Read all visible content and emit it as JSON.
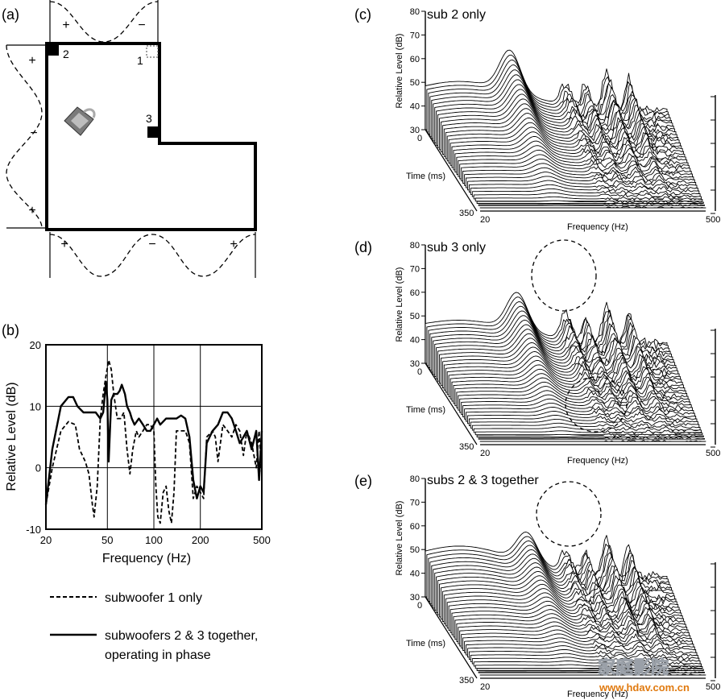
{
  "panels": {
    "a": {
      "letter": "(a)",
      "source_labels": [
        "1",
        "2",
        "3"
      ],
      "signs_top": [
        "+",
        "−"
      ],
      "signs_left": [
        "+",
        "−",
        "+"
      ],
      "signs_bottom": [
        "+",
        "−",
        "+"
      ]
    },
    "b": {
      "letter": "(b)",
      "legend": {
        "dashed": "subwoofer 1 only",
        "solid_line1": "subwoofers 2 & 3 together,",
        "solid_line2": "operating in phase"
      }
    },
    "c": {
      "letter": "(c)",
      "title": "sub 2 only"
    },
    "d": {
      "letter": "(d)",
      "title": "sub 3 only"
    },
    "e": {
      "letter": "(e)",
      "title": "subs 2 & 3 together"
    }
  },
  "waterfall_axes": {
    "ylabel": "Relative Level (dB)",
    "xlabel": "Frequency (Hz)",
    "zlabel": "Time (ms)",
    "yticks": [
      "80",
      "70",
      "60",
      "50",
      "40",
      "30"
    ],
    "x_start": "20",
    "x_end": "500",
    "z_start": "0",
    "z_end": "350"
  },
  "watermark": {
    "text": "www.hdav.com.cn",
    "logo": "家庭影院"
  },
  "chart_data": [
    {
      "type": "line",
      "panel": "b",
      "xlabel": "Frequency (Hz)",
      "ylabel": "Relative Level (dB)",
      "xscale": "log",
      "xlim": [
        20,
        500
      ],
      "ylim": [
        -10,
        20
      ],
      "xticks": [
        20,
        50,
        100,
        200,
        500
      ],
      "yticks": [
        -10,
        0,
        10,
        20
      ],
      "grid": true,
      "legend_position": "below",
      "series": [
        {
          "name": "subwoofer 1 only",
          "style": "dashed",
          "color": "#000000",
          "x": [
            20,
            22,
            25,
            28,
            31,
            33,
            36,
            38,
            40,
            41,
            43,
            45,
            47,
            49,
            51,
            53,
            55,
            58,
            61,
            64,
            67,
            70,
            73,
            77,
            80,
            85,
            90,
            95,
            100,
            103,
            106,
            110,
            115,
            120,
            125,
            130,
            135,
            140,
            150,
            160,
            170,
            180,
            190,
            200,
            210,
            220,
            240,
            250,
            260,
            280,
            300,
            320,
            340,
            360,
            380,
            400,
            430,
            460,
            480,
            500
          ],
          "y": [
            -6,
            0,
            6,
            7.5,
            7,
            3,
            1,
            -1,
            -6,
            -8,
            -3,
            8,
            12,
            15,
            17.5,
            16,
            12,
            8,
            8,
            9,
            3,
            -1,
            3,
            6,
            5,
            6,
            7,
            7,
            6,
            -3,
            -8,
            -9,
            -4,
            -3,
            -7,
            -9,
            -4,
            6,
            6,
            6,
            4,
            -5,
            -3,
            -4,
            -5,
            5,
            6,
            5,
            1,
            7,
            6,
            5,
            7,
            6,
            2,
            6,
            4,
            0,
            6,
            -1
          ]
        },
        {
          "name": "subwoofers 2 & 3 together, operating in phase",
          "style": "solid",
          "color": "#000000",
          "x": [
            20,
            22,
            25,
            28,
            30,
            32,
            35,
            38,
            42,
            45,
            47,
            49,
            50,
            51,
            53,
            55,
            58,
            60,
            62,
            65,
            67,
            70,
            72,
            75,
            80,
            85,
            90,
            95,
            100,
            105,
            110,
            120,
            130,
            140,
            150,
            160,
            170,
            180,
            190,
            200,
            210,
            220,
            240,
            260,
            280,
            300,
            320,
            340,
            360,
            380,
            400,
            430,
            460,
            480,
            500
          ],
          "y": [
            -6,
            3,
            10,
            11.5,
            11.5,
            10,
            9,
            9,
            9,
            8,
            9,
            14,
            11,
            1,
            11,
            12,
            12,
            12.5,
            13.5,
            12,
            10,
            9,
            8,
            7,
            8,
            7,
            6,
            6,
            7,
            8,
            7,
            8,
            8,
            8,
            8.5,
            8,
            5,
            -2,
            -5,
            -3,
            -4,
            4,
            6,
            7,
            9,
            9,
            8,
            6,
            4,
            5,
            6,
            3,
            6,
            -2,
            6
          ]
        }
      ]
    },
    {
      "type": "waterfall",
      "panel": "c",
      "title": "sub 2 only",
      "xlabel": "Frequency (Hz)",
      "ylabel": "Relative Level (dB)",
      "zlabel": "Time (ms)",
      "xlim": [
        20,
        500
      ],
      "ylim": [
        30,
        80
      ],
      "zlim": [
        0,
        350
      ]
    },
    {
      "type": "waterfall",
      "panel": "d",
      "title": "sub 3 only",
      "xlabel": "Frequency (Hz)",
      "ylabel": "Relative Level (dB)",
      "zlabel": "Time (ms)",
      "xlim": [
        20,
        500
      ],
      "ylim": [
        30,
        80
      ],
      "zlim": [
        0,
        350
      ]
    },
    {
      "type": "waterfall",
      "panel": "e",
      "title": "subs 2 & 3 together",
      "xlabel": "Frequency (Hz)",
      "ylabel": "Relative Level (dB)",
      "zlabel": "Time (ms)",
      "xlim": [
        20,
        500
      ],
      "ylim": [
        30,
        80
      ],
      "zlim": [
        0,
        350
      ]
    }
  ]
}
